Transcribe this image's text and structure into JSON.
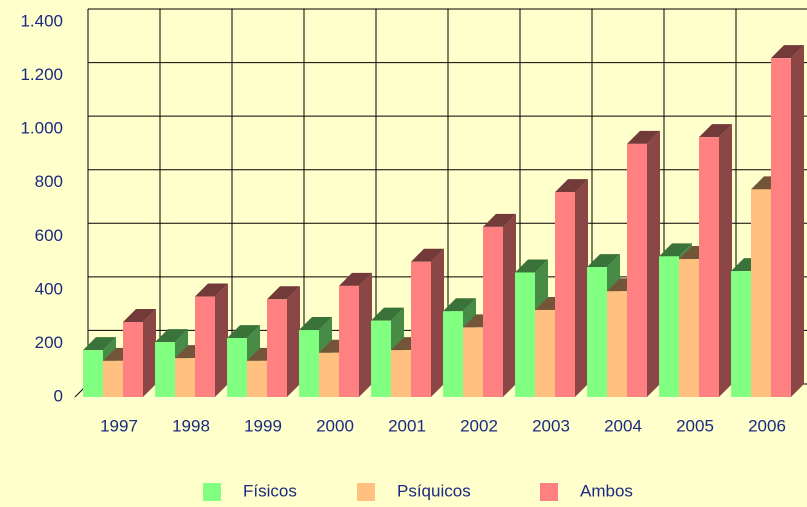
{
  "chart_data": {
    "type": "bar3d",
    "categories": [
      "1997",
      "1998",
      "1999",
      "2000",
      "2001",
      "2002",
      "2003",
      "2004",
      "2005",
      "2006"
    ],
    "series": [
      {
        "name": "Físicos",
        "color": "#80ff80",
        "values": [
          175,
          205,
          220,
          250,
          285,
          320,
          465,
          485,
          525,
          470
        ]
      },
      {
        "name": "Psíquicos",
        "color": "#ffc080",
        "values": [
          135,
          145,
          135,
          165,
          175,
          260,
          325,
          395,
          515,
          775
        ]
      },
      {
        "name": "Ambos",
        "color": "#ff8080",
        "values": [
          280,
          375,
          365,
          415,
          505,
          635,
          765,
          945,
          970,
          1265
        ]
      }
    ],
    "ylim": [
      0,
      1400
    ],
    "yticks": [
      0,
      200,
      400,
      600,
      800,
      {
        "value": 1000,
        "label": "1.000"
      },
      {
        "value": 1200,
        "label": "1.200"
      },
      {
        "value": 1400,
        "label": "1.400"
      }
    ],
    "grid": true
  }
}
